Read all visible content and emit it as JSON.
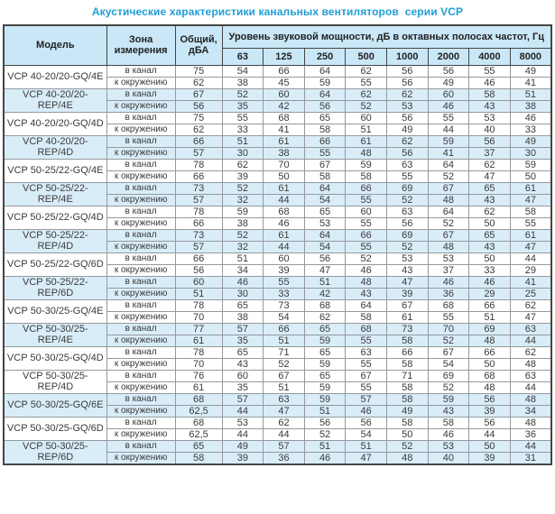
{
  "title": "Акустические характеристики канальных вентиляторов  серии VCP",
  "table": {
    "headers": {
      "model": "Модель",
      "zone": "Зона измерения",
      "total": "Общий, дБА",
      "spl": "Уровень звуковой мощности, дБ в октавных полосах частот, Гц",
      "frequencies": [
        "63",
        "125",
        "250",
        "500",
        "1000",
        "2000",
        "4000",
        "8000"
      ]
    },
    "colors": {
      "title": "#1f9ed6",
      "header_bg": "#c9e7f7",
      "shaded_row_bg": "#d9edf9",
      "border_dark": "#454545",
      "border_light": "#95999d",
      "text": "#3a3a3a"
    },
    "groups": [
      {
        "model": "VCP 40-20/20-GQ/4E",
        "shaded": false,
        "rows": [
          {
            "zone": "в канал",
            "total": "75",
            "values": [
              54,
              66,
              64,
              62,
              56,
              56,
              55,
              49
            ]
          },
          {
            "zone": "к окружению",
            "total": "62",
            "values": [
              38,
              45,
              59,
              55,
              56,
              49,
              46,
              41
            ]
          }
        ]
      },
      {
        "model": "VCP 40-20/20-REP/4E",
        "shaded": true,
        "rows": [
          {
            "zone": "в канал",
            "total": "67",
            "values": [
              52,
              60,
              64,
              62,
              62,
              60,
              58,
              51
            ]
          },
          {
            "zone": "к окружению",
            "total": "56",
            "values": [
              35,
              42,
              56,
              52,
              53,
              46,
              43,
              38
            ]
          }
        ]
      },
      {
        "model": "VCP 40-20/20-GQ/4D",
        "shaded": false,
        "rows": [
          {
            "zone": "в канал",
            "total": "75",
            "values": [
              55,
              68,
              65,
              60,
              56,
              55,
              53,
              46
            ]
          },
          {
            "zone": "к окружению",
            "total": "62",
            "values": [
              33,
              41,
              58,
              51,
              49,
              44,
              40,
              33
            ]
          }
        ]
      },
      {
        "model": "VCP 40-20/20-REP/4D",
        "shaded": true,
        "rows": [
          {
            "zone": "в канал",
            "total": "66",
            "values": [
              51,
              61,
              66,
              61,
              62,
              59,
              56,
              49
            ]
          },
          {
            "zone": "к окружению",
            "total": "57",
            "values": [
              30,
              38,
              55,
              48,
              56,
              41,
              37,
              30
            ]
          }
        ]
      },
      {
        "model": "VCP 50-25/22-GQ/4E",
        "shaded": false,
        "rows": [
          {
            "zone": "в канал",
            "total": "78",
            "values": [
              62,
              70,
              67,
              59,
              63,
              64,
              62,
              59
            ]
          },
          {
            "zone": "к окружению",
            "total": "66",
            "values": [
              39,
              50,
              58,
              58,
              55,
              52,
              47,
              50
            ]
          }
        ]
      },
      {
        "model": "VCP 50-25/22-REP/4E",
        "shaded": true,
        "rows": [
          {
            "zone": "в канал",
            "total": "73",
            "values": [
              52,
              61,
              64,
              66,
              69,
              67,
              65,
              61
            ]
          },
          {
            "zone": "к окружению",
            "total": "57",
            "values": [
              32,
              44,
              54,
              55,
              52,
              48,
              43,
              47
            ]
          }
        ]
      },
      {
        "model": "VCP 50-25/22-GQ/4D",
        "shaded": false,
        "rows": [
          {
            "zone": "в канал",
            "total": "78",
            "values": [
              59,
              68,
              65,
              60,
              63,
              64,
              62,
              58
            ]
          },
          {
            "zone": "к окружению",
            "total": "66",
            "values": [
              38,
              46,
              53,
              55,
              56,
              52,
              50,
              55
            ]
          }
        ]
      },
      {
        "model": "VCP 50-25/22-REP/4D",
        "shaded": true,
        "rows": [
          {
            "zone": "в канал",
            "total": "73",
            "values": [
              52,
              61,
              64,
              66,
              69,
              67,
              65,
              61
            ]
          },
          {
            "zone": "к окружению",
            "total": "57",
            "values": [
              32,
              44,
              54,
              55,
              52,
              48,
              43,
              47
            ]
          }
        ]
      },
      {
        "model": "VCP 50-25/22-GQ/6D",
        "shaded": false,
        "rows": [
          {
            "zone": "в канал",
            "total": "66",
            "values": [
              51,
              60,
              56,
              52,
              53,
              53,
              50,
              44
            ]
          },
          {
            "zone": "к окружению",
            "total": "56",
            "values": [
              34,
              39,
              47,
              46,
              43,
              37,
              33,
              29
            ]
          }
        ]
      },
      {
        "model": "VCP 50-25/22-REP/6D",
        "shaded": true,
        "rows": [
          {
            "zone": "в канал",
            "total": "60",
            "values": [
              46,
              55,
              51,
              48,
              47,
              46,
              46,
              41
            ]
          },
          {
            "zone": "к окружению",
            "total": "51",
            "values": [
              30,
              33,
              42,
              43,
              39,
              36,
              29,
              25
            ]
          }
        ]
      },
      {
        "model": "VCP 50-30/25-GQ/4E",
        "shaded": false,
        "rows": [
          {
            "zone": "в канал",
            "total": "78",
            "values": [
              65,
              73,
              68,
              64,
              67,
              68,
              66,
              62
            ]
          },
          {
            "zone": "к окружению",
            "total": "70",
            "values": [
              38,
              54,
              62,
              58,
              61,
              55,
              51,
              47
            ]
          }
        ]
      },
      {
        "model": "VCP 50-30/25-REP/4E",
        "shaded": true,
        "rows": [
          {
            "zone": "в канал",
            "total": "77",
            "values": [
              57,
              66,
              65,
              68,
              73,
              70,
              69,
              63
            ]
          },
          {
            "zone": "к окружению",
            "total": "61",
            "values": [
              35,
              51,
              59,
              55,
              58,
              52,
              48,
              44
            ]
          }
        ]
      },
      {
        "model": "VCP 50-30/25-GQ/4D",
        "shaded": false,
        "rows": [
          {
            "zone": "в канал",
            "total": "78",
            "values": [
              65,
              71,
              65,
              63,
              66,
              67,
              66,
              62
            ]
          },
          {
            "zone": "к окружению",
            "total": "70",
            "values": [
              43,
              52,
              59,
              55,
              58,
              54,
              50,
              48
            ]
          }
        ]
      },
      {
        "model": "VCP 50-30/25-REP/4D",
        "shaded": false,
        "rows": [
          {
            "zone": "в канал",
            "total": "76",
            "values": [
              60,
              67,
              65,
              67,
              71,
              69,
              68,
              63
            ]
          },
          {
            "zone": "к окружению",
            "total": "61",
            "values": [
              35,
              51,
              59,
              55,
              58,
              52,
              48,
              44
            ]
          }
        ]
      },
      {
        "model": "VCP 50-30/25-GQ/6E",
        "shaded": true,
        "rows": [
          {
            "zone": "в канал",
            "total": "68",
            "values": [
              57,
              63,
              59,
              57,
              58,
              59,
              56,
              48
            ]
          },
          {
            "zone": "к окружению",
            "total": "62,5",
            "values": [
              44,
              47,
              51,
              46,
              49,
              43,
              39,
              34
            ]
          }
        ]
      },
      {
        "model": "VCP 50-30/25-GQ/6D",
        "shaded": false,
        "rows": [
          {
            "zone": "в канал",
            "total": "68",
            "values": [
              53,
              62,
              56,
              56,
              58,
              58,
              56,
              48
            ]
          },
          {
            "zone": "к окружению",
            "total": "62,5",
            "values": [
              44,
              44,
              52,
              54,
              50,
              46,
              44,
              36
            ]
          }
        ]
      },
      {
        "model": "VCP 50-30/25-REP/6D",
        "shaded": true,
        "rows": [
          {
            "zone": "в канал",
            "total": "65",
            "values": [
              49,
              57,
              51,
              51,
              52,
              53,
              50,
              44
            ]
          },
          {
            "zone": "к окружению",
            "total": "58",
            "values": [
              39,
              36,
              46,
              47,
              48,
              40,
              39,
              31
            ]
          }
        ]
      }
    ]
  }
}
